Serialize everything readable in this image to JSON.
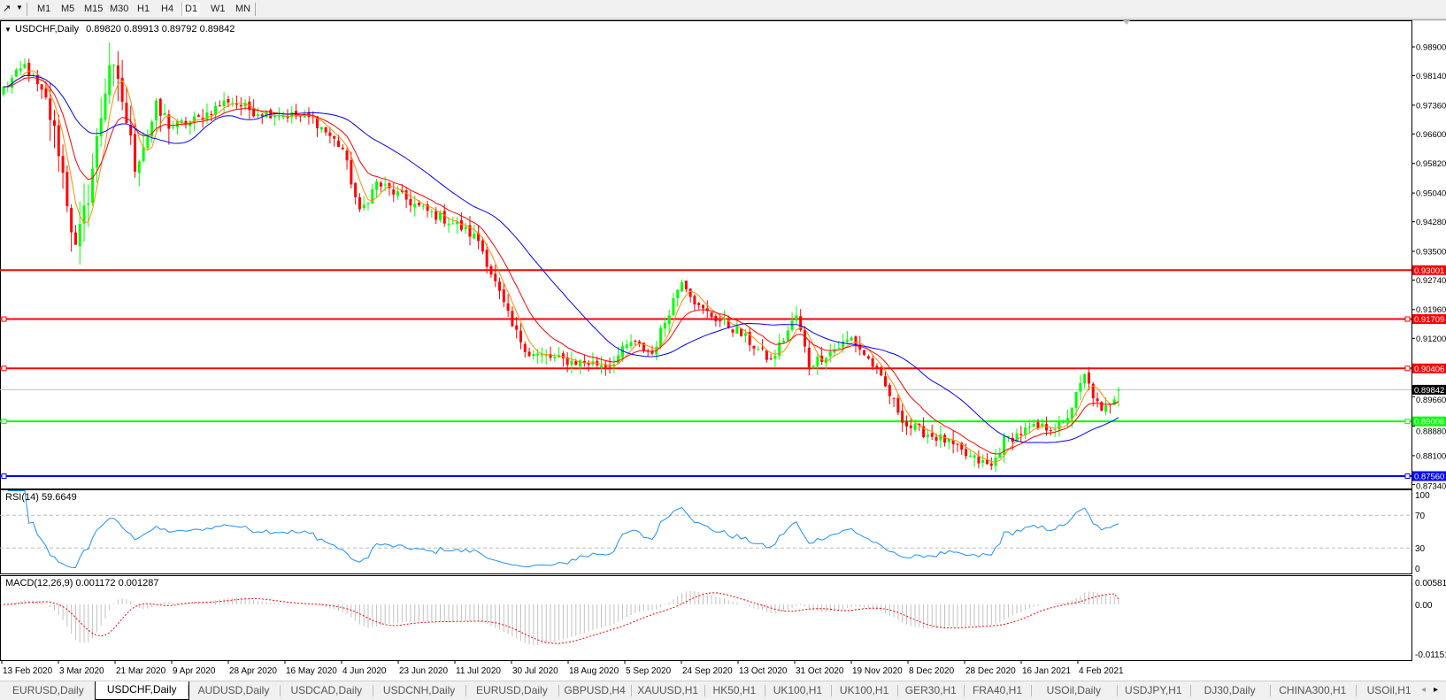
{
  "toolbar": {
    "timeframes": [
      "M1",
      "M5",
      "M15",
      "M30",
      "H1",
      "H4",
      "D1",
      "W1",
      "MN"
    ],
    "active": "D1"
  },
  "chart": {
    "header": "USDCHF,Daily",
    "ohlc": "0.89820 0.89913 0.89792 0.89842",
    "rsi_label": "RSI(14) 59.6649",
    "macd_label": "MACD(12,26,9) 0.001172 0.001287",
    "colors": {
      "bull": "#00ff00",
      "bear": "#ff0000",
      "ma_fast": "#ff8c00",
      "ma_mid": "#ff0000",
      "ma_slow": "#0000ff",
      "rsi": "#1e90ff",
      "macd_hist": "#c0c0c0",
      "macd_signal": "#ff0000"
    }
  },
  "chart_data": {
    "type": "candlestick",
    "symbol": "USDCHF",
    "timeframe": "Daily",
    "last": {
      "open": 0.8982,
      "high": 0.89913,
      "low": 0.89792,
      "close": 0.89842
    },
    "price_ticks": [
      "0.98900",
      "0.98140",
      "0.97360",
      "0.96600",
      "0.95820",
      "0.95040",
      "0.94280",
      "0.93500",
      "0.92740",
      "0.91960",
      "0.91200",
      "0.89660",
      "0.88880",
      "0.88100",
      "0.87340"
    ],
    "date_ticks": [
      "13 Feb 2020",
      "3 Mar 2020",
      "21 Mar 2020",
      "9 Apr 2020",
      "28 Apr 2020",
      "16 May 2020",
      "4 Jun 2020",
      "23 Jun 2020",
      "11 Jul 2020",
      "30 Jul 2020",
      "18 Aug 2020",
      "5 Sep 2020",
      "24 Sep 2020",
      "13 Oct 2020",
      "31 Oct 2020",
      "19 Nov 2020",
      "8 Dec 2020",
      "28 Dec 2020",
      "16 Jan 2021",
      "4 Feb 2021"
    ],
    "approx_close_path": [
      [
        "2020-02-13",
        0.978
      ],
      [
        "2020-02-20",
        0.984
      ],
      [
        "2020-02-27",
        0.975
      ],
      [
        "2020-03-03",
        0.962
      ],
      [
        "2020-03-09",
        0.935
      ],
      [
        "2020-03-12",
        0.95
      ],
      [
        "2020-03-19",
        0.985
      ],
      [
        "2020-03-24",
        0.975
      ],
      [
        "2020-03-27",
        0.958
      ],
      [
        "2020-04-03",
        0.972
      ],
      [
        "2020-04-09",
        0.968
      ],
      [
        "2020-04-17",
        0.97
      ],
      [
        "2020-04-28",
        0.975
      ],
      [
        "2020-05-06",
        0.972
      ],
      [
        "2020-05-16",
        0.971
      ],
      [
        "2020-05-26",
        0.97
      ],
      [
        "2020-06-04",
        0.962
      ],
      [
        "2020-06-10",
        0.945
      ],
      [
        "2020-06-16",
        0.953
      ],
      [
        "2020-06-23",
        0.95
      ],
      [
        "2020-07-01",
        0.946
      ],
      [
        "2020-07-11",
        0.942
      ],
      [
        "2020-07-20",
        0.938
      ],
      [
        "2020-07-30",
        0.915
      ],
      [
        "2020-08-05",
        0.908
      ],
      [
        "2020-08-18",
        0.906
      ],
      [
        "2020-09-01",
        0.905
      ],
      [
        "2020-09-08",
        0.911
      ],
      [
        "2020-09-15",
        0.908
      ],
      [
        "2020-09-24",
        0.928
      ],
      [
        "2020-09-30",
        0.92
      ],
      [
        "2020-10-13",
        0.914
      ],
      [
        "2020-10-23",
        0.906
      ],
      [
        "2020-10-31",
        0.918
      ],
      [
        "2020-11-05",
        0.905
      ],
      [
        "2020-11-19",
        0.912
      ],
      [
        "2020-11-26",
        0.905
      ],
      [
        "2020-12-08",
        0.889
      ],
      [
        "2020-12-20",
        0.885
      ],
      [
        "2020-12-28",
        0.881
      ],
      [
        "2021-01-05",
        0.878
      ],
      [
        "2021-01-08",
        0.885
      ],
      [
        "2021-01-16",
        0.888
      ],
      [
        "2021-01-28",
        0.889
      ],
      [
        "2021-02-04",
        0.902
      ],
      [
        "2021-02-10",
        0.892
      ],
      [
        "2021-02-16",
        0.89842
      ]
    ],
    "levels": [
      {
        "price": 0.93001,
        "label": "0.93001",
        "color": "#ff0000"
      },
      {
        "price": 0.91709,
        "label": "0.91709",
        "color": "#ff0000"
      },
      {
        "price": 0.90406,
        "label": "0.90406",
        "color": "#ff0000"
      },
      {
        "price": 0.89006,
        "label": "0.89006",
        "color": "#00ff00"
      },
      {
        "price": 0.8756,
        "label": "0.87560",
        "color": "#0000ff"
      }
    ],
    "current_price_label": "0.89842",
    "rsi": {
      "period": 14,
      "value": 59.6649,
      "ticks": [
        "100",
        "70",
        "30",
        "0"
      ],
      "levels": [
        70,
        30
      ]
    },
    "macd": {
      "fast": 12,
      "slow": 26,
      "signal": 9,
      "value": 0.001172,
      "signal_value": 0.001287,
      "ticks": [
        "0.005818",
        "0.00",
        "-0.01151"
      ]
    }
  },
  "tabs": [
    "EURUSD,Daily",
    "USDCHF,Daily",
    "AUDUSD,Daily",
    "USDCAD,Daily",
    "USDCNH,Daily",
    "EURUSD,Daily",
    "GBPUSD,H4",
    "XAUUSD,H1",
    "HK50,H1",
    "UK100,H1",
    "UK100,H1",
    "GER30,H1",
    "FRA40,H1",
    "USOil,Daily",
    "USDJPY,H1",
    "DJ30,Daily",
    "CHINA300,H1",
    "USOil,H1"
  ],
  "active_tab": "USDCHF,Daily"
}
